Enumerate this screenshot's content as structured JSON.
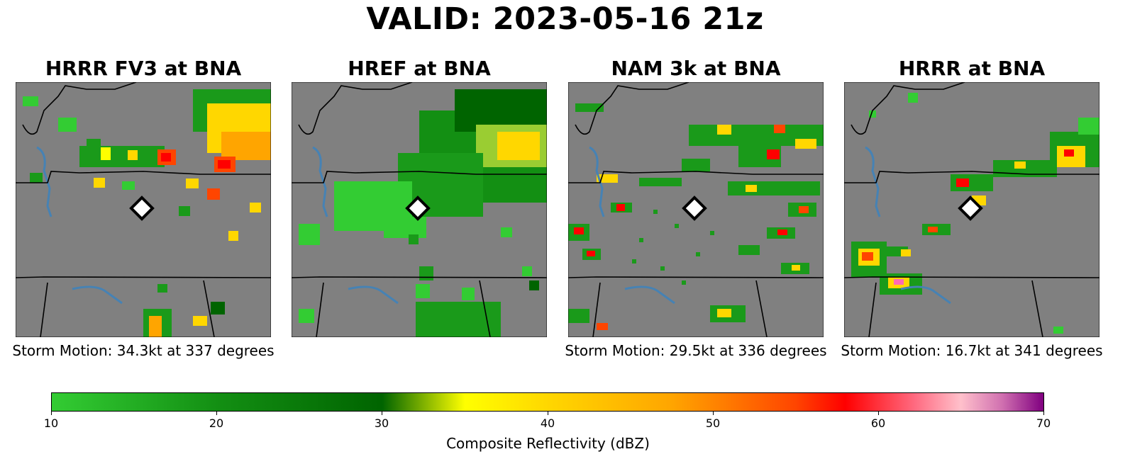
{
  "title": "VALID: 2023-05-16 21z",
  "panels": [
    {
      "title": "HRRR FV3 at BNA",
      "caption": "Storm Motion: 34.3kt at 337 degrees",
      "station": "BNA"
    },
    {
      "title": "HREF at BNA",
      "caption": "",
      "station": "BNA"
    },
    {
      "title": "NAM 3k at BNA",
      "caption": "Storm Motion: 29.5kt at 336 degrees",
      "station": "BNA"
    },
    {
      "title": "HRRR at BNA",
      "caption": "Storm Motion: 16.7kt at 341 degrees",
      "station": "BNA"
    }
  ],
  "colorbar": {
    "label": "Composite Reflectivity (dBZ)",
    "ticks": [
      "10",
      "20",
      "30",
      "40",
      "50",
      "60",
      "70"
    ],
    "min": 10,
    "max": 70
  },
  "colors": {
    "land": "#808080",
    "water": "#4682b4",
    "border": "#000000",
    "light_green": "#33cc33",
    "dark_green": "#006400",
    "yellow": "#ffff00",
    "orange": "#ffa500",
    "red": "#ff0000",
    "pink": "#ffc0cb",
    "purple": "#800080"
  }
}
